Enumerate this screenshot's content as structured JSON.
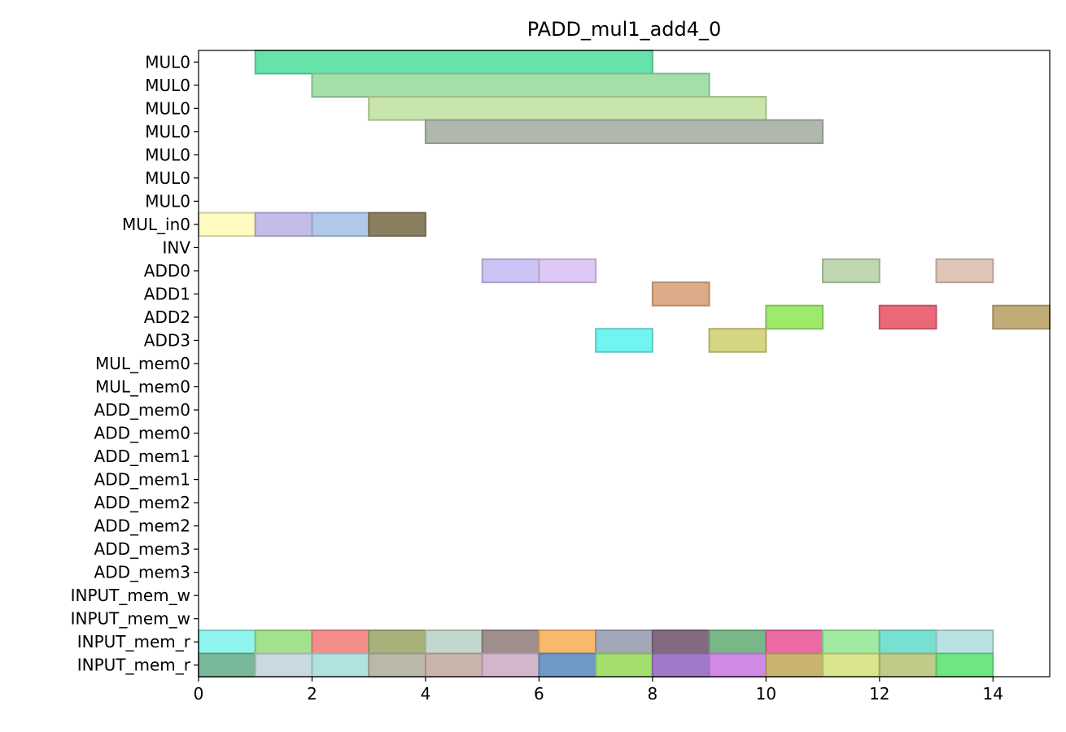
{
  "chart_data": {
    "type": "gantt",
    "title": "PADD_mul1_add4_0",
    "xlim": [
      0,
      15
    ],
    "xticks": [
      0,
      2,
      4,
      6,
      8,
      10,
      12,
      14
    ],
    "grid": false,
    "rows": [
      "MUL0",
      "MUL0",
      "MUL0",
      "MUL0",
      "MUL0",
      "MUL0",
      "MUL0",
      "MUL_in0",
      "INV",
      "ADD0",
      "ADD1",
      "ADD2",
      "ADD3",
      "MUL_mem0",
      "MUL_mem0",
      "ADD_mem0",
      "ADD_mem0",
      "ADD_mem1",
      "ADD_mem1",
      "ADD_mem2",
      "ADD_mem2",
      "ADD_mem3",
      "ADD_mem3",
      "INPUT_mem_w",
      "INPUT_mem_w",
      "INPUT_mem_r",
      "INPUT_mem_r"
    ],
    "bars": [
      {
        "row": 0,
        "start": 1,
        "end": 8,
        "color": "#66e3ab"
      },
      {
        "row": 1,
        "start": 2,
        "end": 9,
        "color": "#a2e0a8"
      },
      {
        "row": 2,
        "start": 3,
        "end": 10,
        "color": "#c8e5ab"
      },
      {
        "row": 3,
        "start": 4,
        "end": 11,
        "color": "#b0b8ad"
      },
      {
        "row": 7,
        "start": 0,
        "end": 1,
        "color": "#fffac0"
      },
      {
        "row": 7,
        "start": 1,
        "end": 2,
        "color": "#c4bdea"
      },
      {
        "row": 7,
        "start": 2,
        "end": 3,
        "color": "#b0c8ea"
      },
      {
        "row": 7,
        "start": 3,
        "end": 4,
        "color": "#8a7f60"
      },
      {
        "row": 9,
        "start": 5,
        "end": 6,
        "color": "#ccc4f5"
      },
      {
        "row": 9,
        "start": 6,
        "end": 7,
        "color": "#dec8f5"
      },
      {
        "row": 9,
        "start": 11,
        "end": 12,
        "color": "#c0d6b0"
      },
      {
        "row": 9,
        "start": 13,
        "end": 14,
        "color": "#dfc6b8"
      },
      {
        "row": 10,
        "start": 8,
        "end": 9,
        "color": "#dcac88"
      },
      {
        "row": 11,
        "start": 10,
        "end": 11,
        "color": "#9eea6a"
      },
      {
        "row": 11,
        "start": 12,
        "end": 13,
        "color": "#ea6878"
      },
      {
        "row": 11,
        "start": 14,
        "end": 15,
        "color": "#bfac76"
      },
      {
        "row": 12,
        "start": 7,
        "end": 8,
        "color": "#72f5f2"
      },
      {
        "row": 12,
        "start": 9,
        "end": 10,
        "color": "#d6d682"
      },
      {
        "row": 25,
        "start": 0,
        "end": 1,
        "color": "#8ff4ee"
      },
      {
        "row": 25,
        "start": 1,
        "end": 2,
        "color": "#a2e28a"
      },
      {
        "row": 25,
        "start": 2,
        "end": 3,
        "color": "#f48e8a"
      },
      {
        "row": 25,
        "start": 3,
        "end": 4,
        "color": "#a6b27a"
      },
      {
        "row": 25,
        "start": 4,
        "end": 5,
        "color": "#c2d8cc"
      },
      {
        "row": 25,
        "start": 5,
        "end": 6,
        "color": "#9e8e8c"
      },
      {
        "row": 25,
        "start": 6,
        "end": 7,
        "color": "#fab86a"
      },
      {
        "row": 25,
        "start": 7,
        "end": 8,
        "color": "#a2a8ba"
      },
      {
        "row": 25,
        "start": 8,
        "end": 9,
        "color": "#826a80"
      },
      {
        "row": 25,
        "start": 9,
        "end": 10,
        "color": "#78b888"
      },
      {
        "row": 25,
        "start": 10,
        "end": 11,
        "color": "#ec6aa4"
      },
      {
        "row": 25,
        "start": 11,
        "end": 12,
        "color": "#a2eaa2"
      },
      {
        "row": 25,
        "start": 12,
        "end": 13,
        "color": "#78e0d0"
      },
      {
        "row": 25,
        "start": 13,
        "end": 14,
        "color": "#b8e2e2"
      },
      {
        "row": 26,
        "start": 0,
        "end": 1,
        "color": "#7ab89a"
      },
      {
        "row": 26,
        "start": 1,
        "end": 2,
        "color": "#cad8e0"
      },
      {
        "row": 26,
        "start": 2,
        "end": 3,
        "color": "#b0e2e0"
      },
      {
        "row": 26,
        "start": 3,
        "end": 4,
        "color": "#bab8a8"
      },
      {
        "row": 26,
        "start": 4,
        "end": 5,
        "color": "#c8b4aa"
      },
      {
        "row": 26,
        "start": 5,
        "end": 6,
        "color": "#d4b6cc"
      },
      {
        "row": 26,
        "start": 6,
        "end": 7,
        "color": "#6e98c6"
      },
      {
        "row": 26,
        "start": 7,
        "end": 8,
        "color": "#a4de6c"
      },
      {
        "row": 26,
        "start": 8,
        "end": 9,
        "color": "#a07ac8"
      },
      {
        "row": 26,
        "start": 9,
        "end": 10,
        "color": "#d08ae6"
      },
      {
        "row": 26,
        "start": 10,
        "end": 11,
        "color": "#c8b46c"
      },
      {
        "row": 26,
        "start": 11,
        "end": 12,
        "color": "#dae48a"
      },
      {
        "row": 26,
        "start": 12,
        "end": 13,
        "color": "#bfcb86"
      },
      {
        "row": 26,
        "start": 13,
        "end": 14,
        "color": "#6ee682"
      }
    ]
  }
}
